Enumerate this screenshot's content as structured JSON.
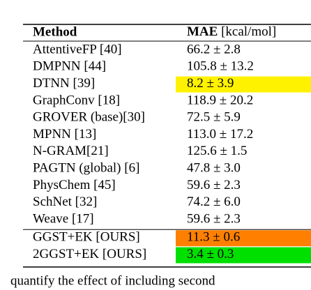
{
  "table": {
    "header": {
      "method": "Method",
      "metric": "MAE",
      "unit": "[kcal/mol]"
    },
    "rows": [
      {
        "method": "AttentiveFP [40]",
        "mae": "66.2 ± 2.8"
      },
      {
        "method": "DMPNN [44]",
        "mae": "105.8 ± 13.2"
      },
      {
        "method": "DTNN [39]",
        "mae": "8.2 ± 3.9",
        "highlight": "#fff200"
      },
      {
        "method": "GraphConv [18]",
        "mae": "118.9 ± 20.2"
      },
      {
        "method": "GROVER (base)[30]",
        "mae": "72.5 ± 5.9"
      },
      {
        "method": "MPNN [13]",
        "mae": "113.0 ± 17.2"
      },
      {
        "method": "N-GRAM[21]",
        "mae": "125.6 ± 1.5"
      },
      {
        "method": "PAGTN (global) [6]",
        "mae": "47.8 ± 3.0"
      },
      {
        "method": "PhysChem [45]",
        "mae": "59.6 ± 2.3"
      },
      {
        "method": "SchNet [32]",
        "mae": "74.2 ± 6.0"
      },
      {
        "method": "Weave [17]",
        "mae": "59.6 ± 2.3"
      },
      {
        "method": "GGST+EK [OURS]",
        "mae": "11.3 ± 0.6",
        "highlight": "#ff8000",
        "group": "ours"
      },
      {
        "method": "2GGST+EK [OURS]",
        "mae": "3.4 ± 0.3",
        "highlight": "#00e000",
        "group": "ours"
      }
    ]
  },
  "caption": "quantify the effect of including second"
}
